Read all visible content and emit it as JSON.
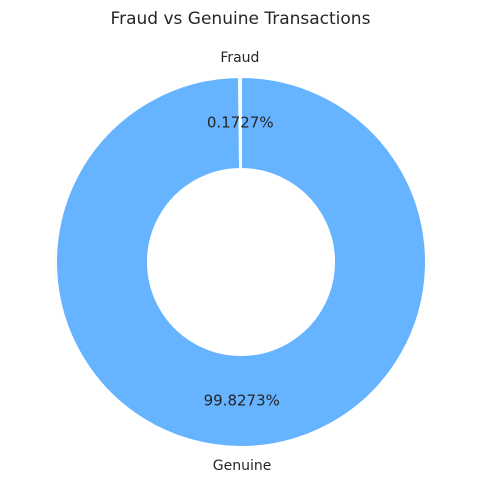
{
  "chart_data": {
    "type": "pie",
    "title": "Fraud vs Genuine Transactions",
    "slices": [
      {
        "label": "Fraud",
        "value": 0.1727,
        "percent_label": "0.1727%",
        "color": "#d9d9d9"
      },
      {
        "label": "Genuine",
        "value": 99.8273,
        "percent_label": "99.8273%",
        "color": "#66b3ff"
      }
    ],
    "donut": true,
    "inner_color": "#ffffff",
    "start_angle_deg": 90,
    "direction": "counterclockwise"
  }
}
